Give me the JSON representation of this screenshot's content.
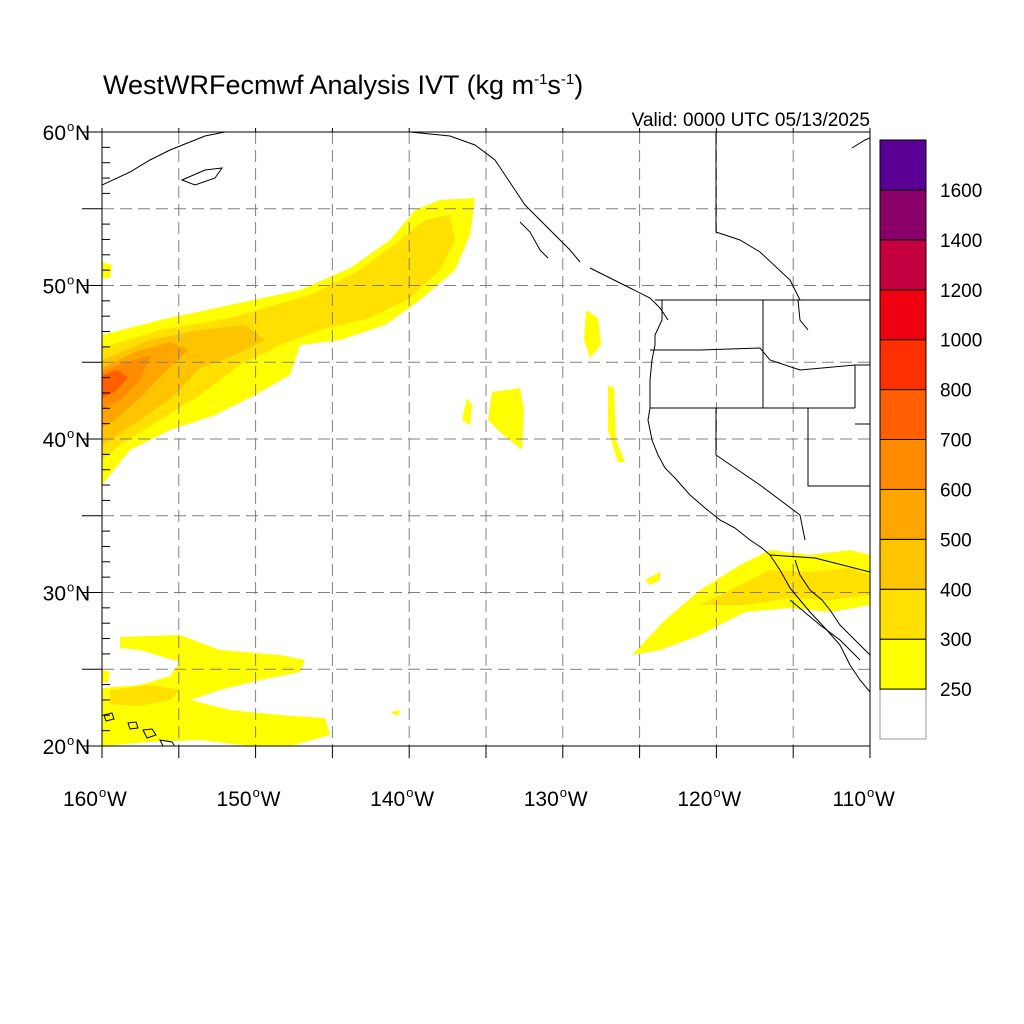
{
  "header": {
    "title_main": "WestWRFecmwf Analysis IVT (kg m",
    "title_exp1": "-1",
    "title_mid": "s",
    "title_exp2": "-1",
    "title_end": ")",
    "valid": "Valid: 0000 UTC 05/13/2025"
  },
  "axes": {
    "lat_labels": [
      {
        "value": 60,
        "num": "60",
        "deg": "o",
        "hemi": "N"
      },
      {
        "value": 50,
        "num": "50",
        "deg": "o",
        "hemi": "N"
      },
      {
        "value": 40,
        "num": "40",
        "deg": "o",
        "hemi": "N"
      },
      {
        "value": 30,
        "num": "30",
        "deg": "o",
        "hemi": "N"
      },
      {
        "value": 20,
        "num": "20",
        "deg": "o",
        "hemi": "N"
      }
    ],
    "lon_labels": [
      {
        "value": -160,
        "num": "160",
        "deg": "o",
        "hemi": "W"
      },
      {
        "value": -150,
        "num": "150",
        "deg": "o",
        "hemi": "W"
      },
      {
        "value": -140,
        "num": "140",
        "deg": "o",
        "hemi": "W"
      },
      {
        "value": -130,
        "num": "130",
        "deg": "o",
        "hemi": "W"
      },
      {
        "value": -120,
        "num": "120",
        "deg": "o",
        "hemi": "W"
      },
      {
        "value": -110,
        "num": "110",
        "deg": "o",
        "hemi": "W"
      }
    ],
    "extent": {
      "lon_min": -160,
      "lon_max": -110,
      "lat_min": 20,
      "lat_max": 60
    },
    "grid_interval_deg": 5
  },
  "colorbar": {
    "levels": [
      "250",
      "300",
      "400",
      "500",
      "600",
      "700",
      "800",
      "1000",
      "1200",
      "1400",
      "1600"
    ],
    "colors": [
      "#ffffff",
      "#ffff00",
      "#ffe000",
      "#ffc400",
      "#ffa500",
      "#ff8c00",
      "#ff5f00",
      "#ff3000",
      "#ee0010",
      "#c40040",
      "#8b0068",
      "#5a0095"
    ]
  },
  "legend": {
    "units": "kg m-1 s-1"
  }
}
